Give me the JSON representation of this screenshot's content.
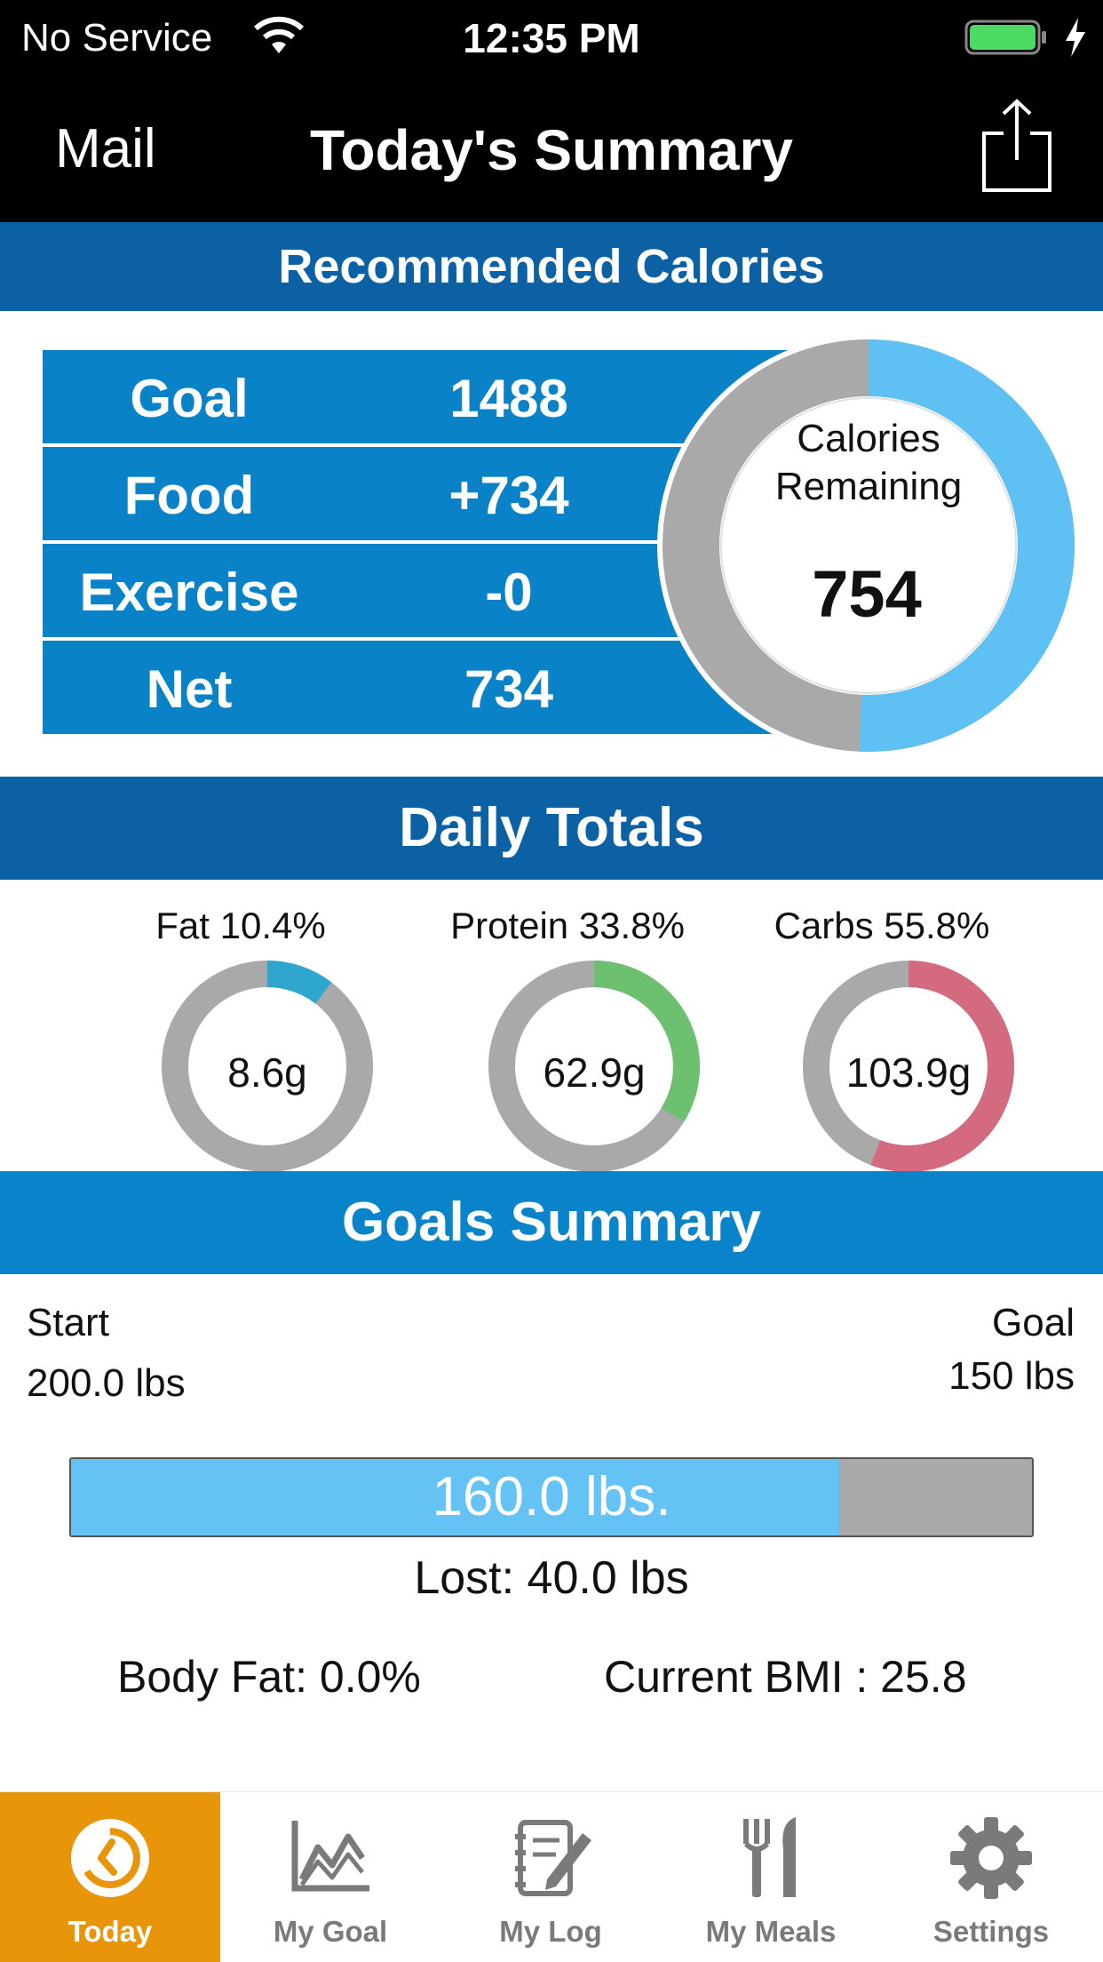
{
  "status_bar": {
    "carrier": "No Service",
    "time": "12:35 PM",
    "battery_color": "#4cd964"
  },
  "nav": {
    "back_label": "Mail",
    "title": "Today's Summary"
  },
  "recommended": {
    "header": "Recommended Calories",
    "rows": [
      {
        "label": "Goal",
        "value": "1488"
      },
      {
        "label": "Food",
        "value": "+734"
      },
      {
        "label": "Exercise",
        "value": "-0"
      },
      {
        "label": "Net",
        "value": "734"
      }
    ],
    "ring": {
      "line1": "Calories",
      "line2": "Remaining",
      "value": "754",
      "remaining_fraction": 0.507,
      "remaining_color": "#5fc0f3",
      "used_color": "#a9a9a9"
    }
  },
  "daily_totals": {
    "header": "Daily Totals",
    "macros": [
      {
        "label": "Fat 10.4%",
        "value": "8.6g",
        "fraction": 0.104,
        "color": "#2fa6d0"
      },
      {
        "label": "Protein 33.8%",
        "value": "62.9g",
        "fraction": 0.338,
        "color": "#6cc070"
      },
      {
        "label": "Carbs 55.8%",
        "value": "103.9g",
        "fraction": 0.558,
        "color": "#d46a7e"
      }
    ]
  },
  "goals_summary": {
    "header": "Goals Summary",
    "start_label": "Start",
    "start_value": "200.0 lbs",
    "goal_label": "Goal",
    "goal_value": "150 lbs",
    "current_text": "160.0 lbs.",
    "progress_fraction": 0.8,
    "lost_text": "Lost:  40.0 lbs",
    "body_fat_text": "Body Fat:  0.0%",
    "bmi_text": "Current BMI : 25.8"
  },
  "tabs": [
    {
      "label": "Today",
      "icon": "today-clock-icon",
      "active": true
    },
    {
      "label": "My Goal",
      "icon": "chart-icon",
      "active": false
    },
    {
      "label": "My Log",
      "icon": "notebook-pencil-icon",
      "active": false
    },
    {
      "label": "My Meals",
      "icon": "fork-knife-icon",
      "active": false
    },
    {
      "label": "Settings",
      "icon": "gear-icon",
      "active": false
    }
  ]
}
